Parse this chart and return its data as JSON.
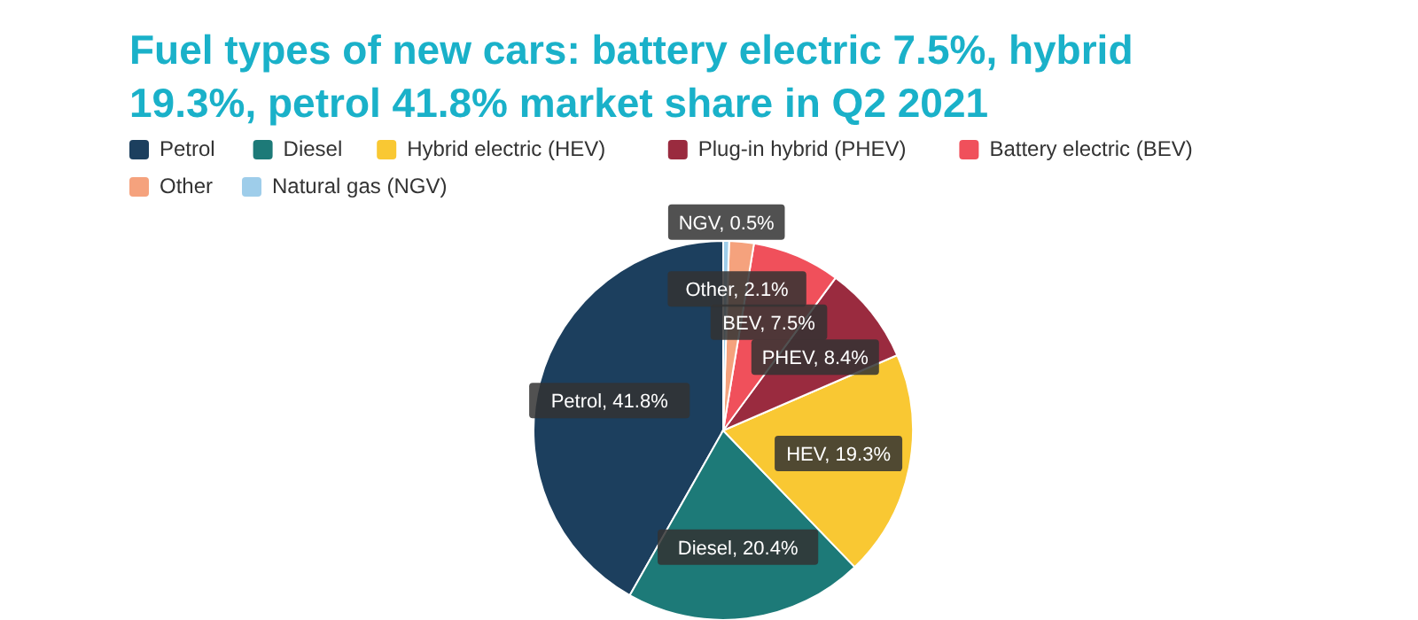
{
  "chart_data": {
    "type": "pie",
    "title": "Fuel types of new cars: battery electric 7.5%, hybrid 19.3%, petrol 41.8% market share in Q2 2021",
    "categories": [
      "Petrol",
      "Diesel",
      "Hybrid electric (HEV)",
      "Plug-in hybrid (PHEV)",
      "Battery electric (BEV)",
      "Other",
      "Natural gas (NGV)"
    ],
    "values": [
      41.8,
      20.4,
      19.3,
      8.4,
      7.5,
      2.1,
      0.5
    ],
    "colors": [
      "#1c3f5e",
      "#1d7a78",
      "#f9c833",
      "#9a2b3f",
      "#f0505b",
      "#f5a27d",
      "#9ecdea"
    ],
    "value_labels": [
      "Petrol, 41.8%",
      "Diesel, 20.4%",
      "HEV, 19.3%",
      "PHEV, 8.4%",
      "BEV, 7.5%",
      "Other, 2.1%",
      "NGV, 0.5%"
    ],
    "legend": "top"
  }
}
